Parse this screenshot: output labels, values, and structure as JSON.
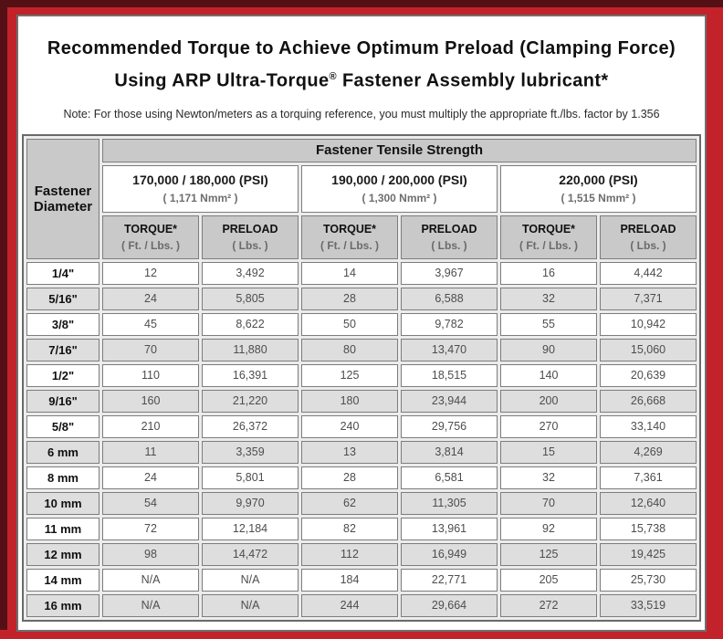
{
  "colors": {
    "frame_red": "#c2222a",
    "frame_dark_edge": "#551015",
    "header_gray": "#c9c9c9",
    "row_alt_gray": "#dedede"
  },
  "title": {
    "line1": "Recommended Torque to Achieve Optimum Preload (Clamping Force)",
    "line2_pre": "Using ARP Ultra-Torque",
    "line2_sup": "®",
    "line2_post": " Fastener Assembly lubricant*",
    "note": "Note: For those using Newton/meters as a torquing reference, you must multiply the appropriate ft./lbs. factor by 1.356"
  },
  "table": {
    "corner_label": "Fastener Diameter",
    "tensile_header": "Fastener Tensile Strength",
    "groups": [
      {
        "psi": "170,000 / 180,000 (PSI)",
        "nmm": "( 1,171 Nmm² )"
      },
      {
        "psi": "190,000 / 200,000 (PSI)",
        "nmm": "( 1,300 Nmm² )"
      },
      {
        "psi": "220,000 (PSI)",
        "nmm": "( 1,515 Nmm² )"
      }
    ],
    "col_headers": {
      "torque": "TORQUE*",
      "torque_sub": "( Ft. / Lbs. )",
      "preload": "PRELOAD",
      "preload_sub": "( Lbs. )"
    },
    "rows": [
      {
        "diameter": "1/4\"",
        "values": [
          "12",
          "3,492",
          "14",
          "3,967",
          "16",
          "4,442"
        ]
      },
      {
        "diameter": "5/16\"",
        "values": [
          "24",
          "5,805",
          "28",
          "6,588",
          "32",
          "7,371"
        ]
      },
      {
        "diameter": "3/8\"",
        "values": [
          "45",
          "8,622",
          "50",
          "9,782",
          "55",
          "10,942"
        ]
      },
      {
        "diameter": "7/16\"",
        "values": [
          "70",
          "11,880",
          "80",
          "13,470",
          "90",
          "15,060"
        ]
      },
      {
        "diameter": "1/2\"",
        "values": [
          "110",
          "16,391",
          "125",
          "18,515",
          "140",
          "20,639"
        ]
      },
      {
        "diameter": "9/16\"",
        "values": [
          "160",
          "21,220",
          "180",
          "23,944",
          "200",
          "26,668"
        ]
      },
      {
        "diameter": "5/8\"",
        "values": [
          "210",
          "26,372",
          "240",
          "29,756",
          "270",
          "33,140"
        ]
      },
      {
        "diameter": "6 mm",
        "values": [
          "11",
          "3,359",
          "13",
          "3,814",
          "15",
          "4,269"
        ]
      },
      {
        "diameter": "8 mm",
        "values": [
          "24",
          "5,801",
          "28",
          "6,581",
          "32",
          "7,361"
        ]
      },
      {
        "diameter": "10 mm",
        "values": [
          "54",
          "9,970",
          "62",
          "11,305",
          "70",
          "12,640"
        ]
      },
      {
        "diameter": "11 mm",
        "values": [
          "72",
          "12,184",
          "82",
          "13,961",
          "92",
          "15,738"
        ]
      },
      {
        "diameter": "12 mm",
        "values": [
          "98",
          "14,472",
          "112",
          "16,949",
          "125",
          "19,425"
        ]
      },
      {
        "diameter": "14 mm",
        "values": [
          "N/A",
          "N/A",
          "184",
          "22,771",
          "205",
          "25,730"
        ]
      },
      {
        "diameter": "16 mm",
        "values": [
          "N/A",
          "N/A",
          "244",
          "29,664",
          "272",
          "33,519"
        ]
      }
    ]
  }
}
